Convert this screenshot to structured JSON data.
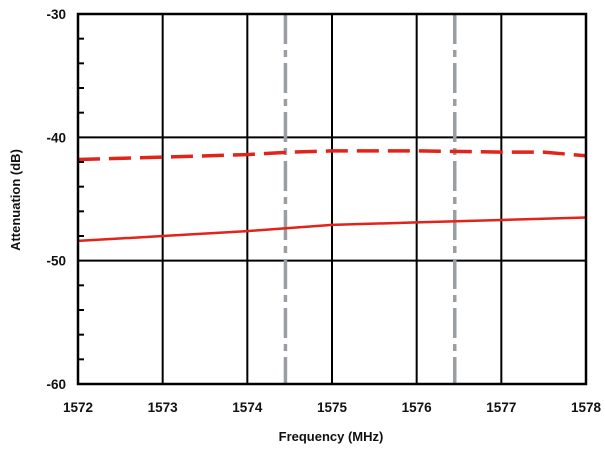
{
  "chart_data": {
    "type": "line",
    "title": "",
    "xlabel": "Frequency (MHz)",
    "ylabel": "Attenuation (dB)",
    "xlim": [
      1572,
      1578
    ],
    "ylim": [
      -60,
      -30
    ],
    "x_ticks": [
      "1572",
      "1573",
      "1574",
      "1575",
      "1576",
      "1577",
      "1578"
    ],
    "y_ticks": [
      "-30",
      "-40",
      "-50",
      "-60"
    ],
    "grid": true,
    "series": [
      {
        "style": "dashed",
        "color": "#e2231a",
        "x": [
          1572,
          1573,
          1574,
          1574.5,
          1575,
          1576,
          1577,
          1577.5,
          1578
        ],
        "y": [
          -41.8,
          -41.6,
          -41.4,
          -41.2,
          -41.1,
          -41.1,
          -41.2,
          -41.2,
          -41.5
        ]
      },
      {
        "style": "solid",
        "color": "#e2231a",
        "x": [
          1572,
          1573,
          1574,
          1575,
          1576,
          1577,
          1578
        ],
        "y": [
          -48.4,
          -48.0,
          -47.6,
          -47.1,
          -46.9,
          -46.7,
          -46.5
        ]
      }
    ],
    "marker_lines": {
      "style": "dash-dot",
      "color": "#9a9ea2",
      "x": [
        1574.45,
        1576.45
      ]
    }
  }
}
